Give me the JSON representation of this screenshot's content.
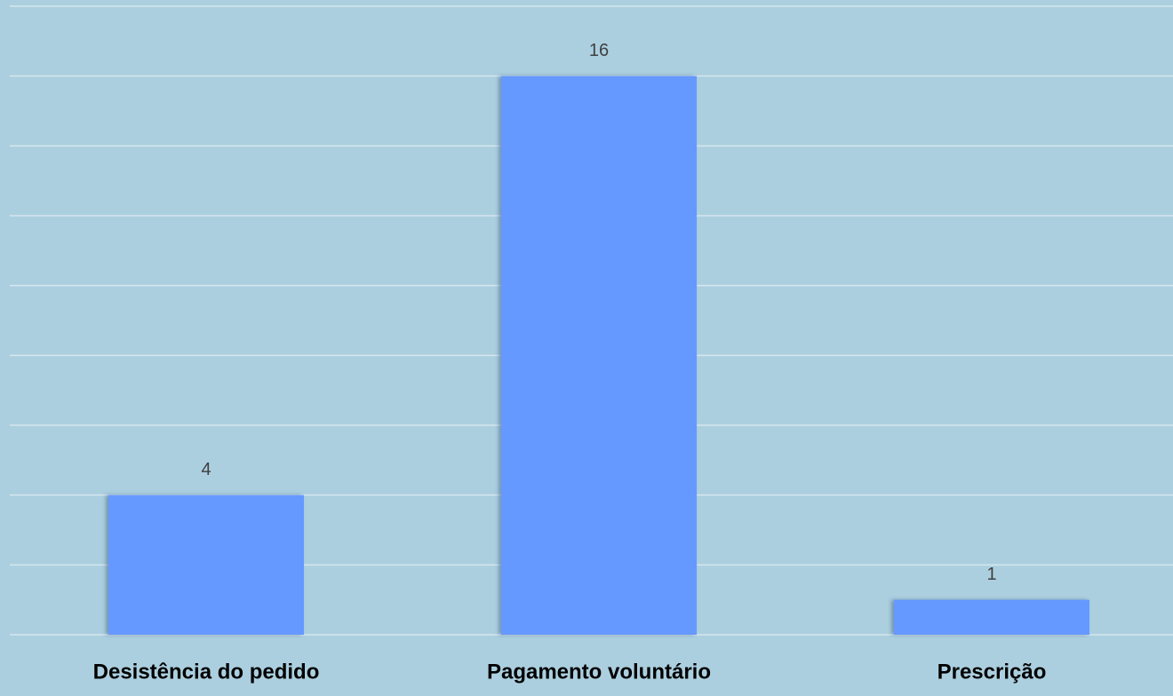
{
  "chart_data": {
    "type": "bar",
    "categories": [
      "Desistência do pedido",
      "Pagamento voluntário",
      "Prescrição"
    ],
    "values": [
      4,
      16,
      1
    ],
    "color": "#6699ff",
    "ylim": [
      0,
      18
    ],
    "yticks": [
      0,
      2,
      4,
      6,
      8,
      10,
      12,
      14,
      16,
      18
    ],
    "grid": true
  }
}
